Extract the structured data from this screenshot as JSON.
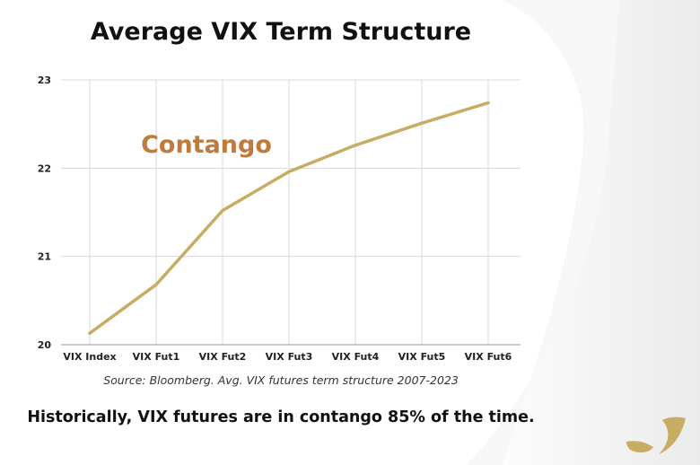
{
  "chart_data": {
    "type": "line",
    "title": "Average VIX Term Structure",
    "categories": [
      "VIX Index",
      "VIX Fut1",
      "VIX Fut2",
      "VIX Fut3",
      "VIX Fut4",
      "VIX Fut5",
      "VIX Fut6"
    ],
    "series": [
      {
        "name": "Avg. VIX term structure",
        "values": [
          20.13,
          20.68,
          21.52,
          21.96,
          22.26,
          22.51,
          22.74
        ]
      }
    ],
    "ylim": [
      20,
      23
    ],
    "yticks": [
      20,
      21,
      22,
      23
    ],
    "xlabel": "",
    "ylabel": "",
    "grid": true,
    "annotation": "Contango",
    "source": "Source: Bloomberg. Avg. VIX futures term structure 2007-2023",
    "line_color": "#c8ac63",
    "annotation_color": "#c07a3c"
  },
  "footnote": "Historically, VIX futures are in contango 85% of the time."
}
